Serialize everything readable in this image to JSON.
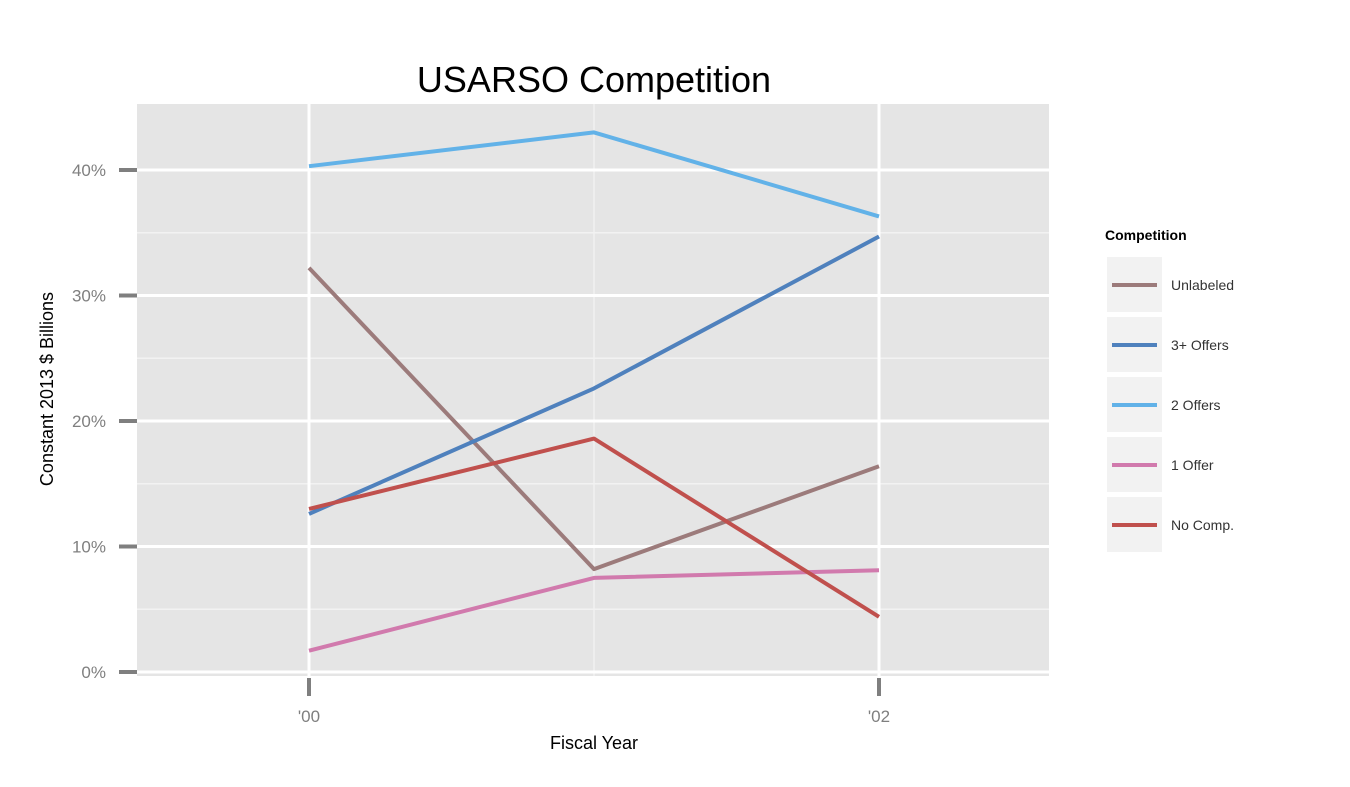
{
  "chart_data": {
    "type": "line",
    "title": "USARSO Competition",
    "xlabel": "Fiscal Year",
    "ylabel": "Constant 2013 $ Billions",
    "x": [
      2000,
      2001,
      2002
    ],
    "xlim": [
      1999.4,
      2002.6
    ],
    "x_ticks": [
      2000,
      2002
    ],
    "x_tick_labels": [
      "'00",
      "'02"
    ],
    "ylim": [
      0,
      45
    ],
    "y_ticks": [
      0,
      10,
      20,
      30,
      40
    ],
    "y_tick_labels": [
      "0%",
      "10%",
      "20%",
      "30%",
      "40%"
    ],
    "grid": true,
    "legend": {
      "title": "Competition",
      "placement": "right"
    },
    "series": [
      {
        "name": "Unlabeled",
        "color": "#9c7b7b",
        "values": [
          32.2,
          8.2,
          16.4
        ]
      },
      {
        "name": "3+ Offers",
        "color": "#4f81bd",
        "values": [
          12.6,
          22.6,
          34.7
        ]
      },
      {
        "name": "2 Offers",
        "color": "#62b2e8",
        "values": [
          40.3,
          43.0,
          36.3
        ]
      },
      {
        "name": "1 Offer",
        "color": "#d17aad",
        "values": [
          1.7,
          7.5,
          8.1
        ]
      },
      {
        "name": "No Comp.",
        "color": "#c0504d",
        "values": [
          13.0,
          18.6,
          4.4
        ]
      }
    ]
  }
}
